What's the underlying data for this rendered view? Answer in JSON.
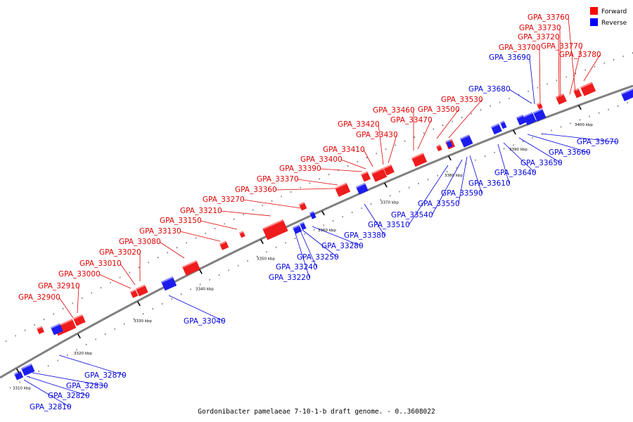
{
  "caption": "Gordonibacter pamelaeae 7-10-1-b draft genome. - 0..3608022",
  "legend": [
    {
      "label": "Forward",
      "color": "#ff0000"
    },
    {
      "label": "Reverse",
      "color": "#0000ff"
    }
  ],
  "colors": {
    "forward": "#e00000",
    "reverse": "#0000e0",
    "backbone": "#808080"
  },
  "ticks": [
    "3310 kbp",
    "3320 kbp",
    "3330 kbp",
    "3340 kbp",
    "3350 kbp",
    "3360 kbp",
    "3370 kbp",
    "3380 kbp",
    "3390 kbp",
    "3400 kbp"
  ],
  "forward_genes": [
    "GPA_32900",
    "GPA_32910",
    "GPA_33000",
    "GPA_33010",
    "GPA_33020",
    "GPA_33080",
    "GPA_33130",
    "GPA_33150",
    "GPA_33210",
    "GPA_33270",
    "GPA_33360",
    "GPA_33370",
    "GPA_33390",
    "GPA_33400",
    "GPA_33410",
    "GPA_33420",
    "GPA_33430",
    "GPA_33460",
    "GPA_33470",
    "GPA_33500",
    "GPA_33530",
    "GPA_33700",
    "GPA_33720",
    "GPA_33730",
    "GPA_33760",
    "GPA_33770",
    "GPA_33780"
  ],
  "reverse_genes": [
    "GPA_32810",
    "GPA_32820",
    "GPA_32830",
    "GPA_32870",
    "GPA_33040",
    "GPA_33220",
    "GPA_33240",
    "GPA_33250",
    "GPA_33280",
    "GPA_33380",
    "GPA_33510",
    "GPA_33540",
    "GPA_33550",
    "GPA_33590",
    "GPA_33610",
    "GPA_33640",
    "GPA_33650",
    "GPA_33660",
    "GPA_33670",
    "GPA_33680",
    "GPA_33690"
  ]
}
